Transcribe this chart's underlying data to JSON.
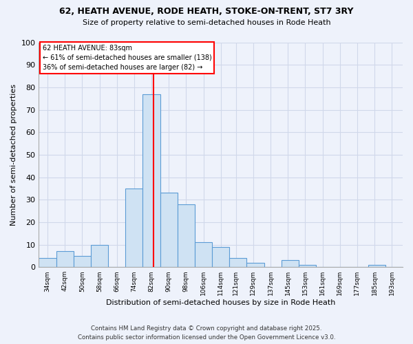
{
  "title": "62, HEATH AVENUE, RODE HEATH, STOKE-ON-TRENT, ST7 3RY",
  "subtitle": "Size of property relative to semi-detached houses in Rode Heath",
  "xlabel": "Distribution of semi-detached houses by size in Rode Heath",
  "ylabel": "Number of semi-detached properties",
  "bin_labels": [
    "34sqm",
    "42sqm",
    "50sqm",
    "58sqm",
    "66sqm",
    "74sqm",
    "82sqm",
    "90sqm",
    "98sqm",
    "106sqm",
    "114sqm",
    "121sqm",
    "129sqm",
    "137sqm",
    "145sqm",
    "153sqm",
    "161sqm",
    "169sqm",
    "177sqm",
    "185sqm",
    "193sqm"
  ],
  "bin_lefts": [
    30,
    38,
    46,
    54,
    62,
    70,
    78,
    86,
    94,
    102,
    110,
    118,
    126,
    134,
    142,
    150,
    158,
    166,
    174,
    182,
    190
  ],
  "bin_rights": [
    38,
    46,
    54,
    62,
    70,
    78,
    86,
    94,
    102,
    110,
    118,
    126,
    134,
    142,
    150,
    158,
    166,
    174,
    182,
    190,
    198
  ],
  "tick_positions": [
    34,
    42,
    50,
    58,
    66,
    74,
    82,
    90,
    98,
    106,
    114,
    121,
    129,
    137,
    145,
    153,
    161,
    169,
    177,
    185,
    193
  ],
  "counts": [
    4,
    7,
    5,
    10,
    0,
    35,
    77,
    33,
    28,
    11,
    9,
    4,
    2,
    0,
    3,
    1,
    0,
    0,
    0,
    1,
    0
  ],
  "bar_color": "#cfe2f3",
  "bar_edgecolor": "#5b9bd5",
  "vline_x": 83,
  "vline_color": "red",
  "annotation_title": "62 HEATH AVENUE: 83sqm",
  "annotation_line1": "← 61% of semi-detached houses are smaller (138)",
  "annotation_line2": "36% of semi-detached houses are larger (82) →",
  "annotation_box_color": "white",
  "annotation_box_edgecolor": "red",
  "ylim": [
    0,
    100
  ],
  "xlim_left": 30,
  "xlim_right": 198,
  "background_color": "#eef2fb",
  "grid_color": "#d0d8ea",
  "footer1": "Contains HM Land Registry data © Crown copyright and database right 2025.",
  "footer2": "Contains public sector information licensed under the Open Government Licence v3.0."
}
